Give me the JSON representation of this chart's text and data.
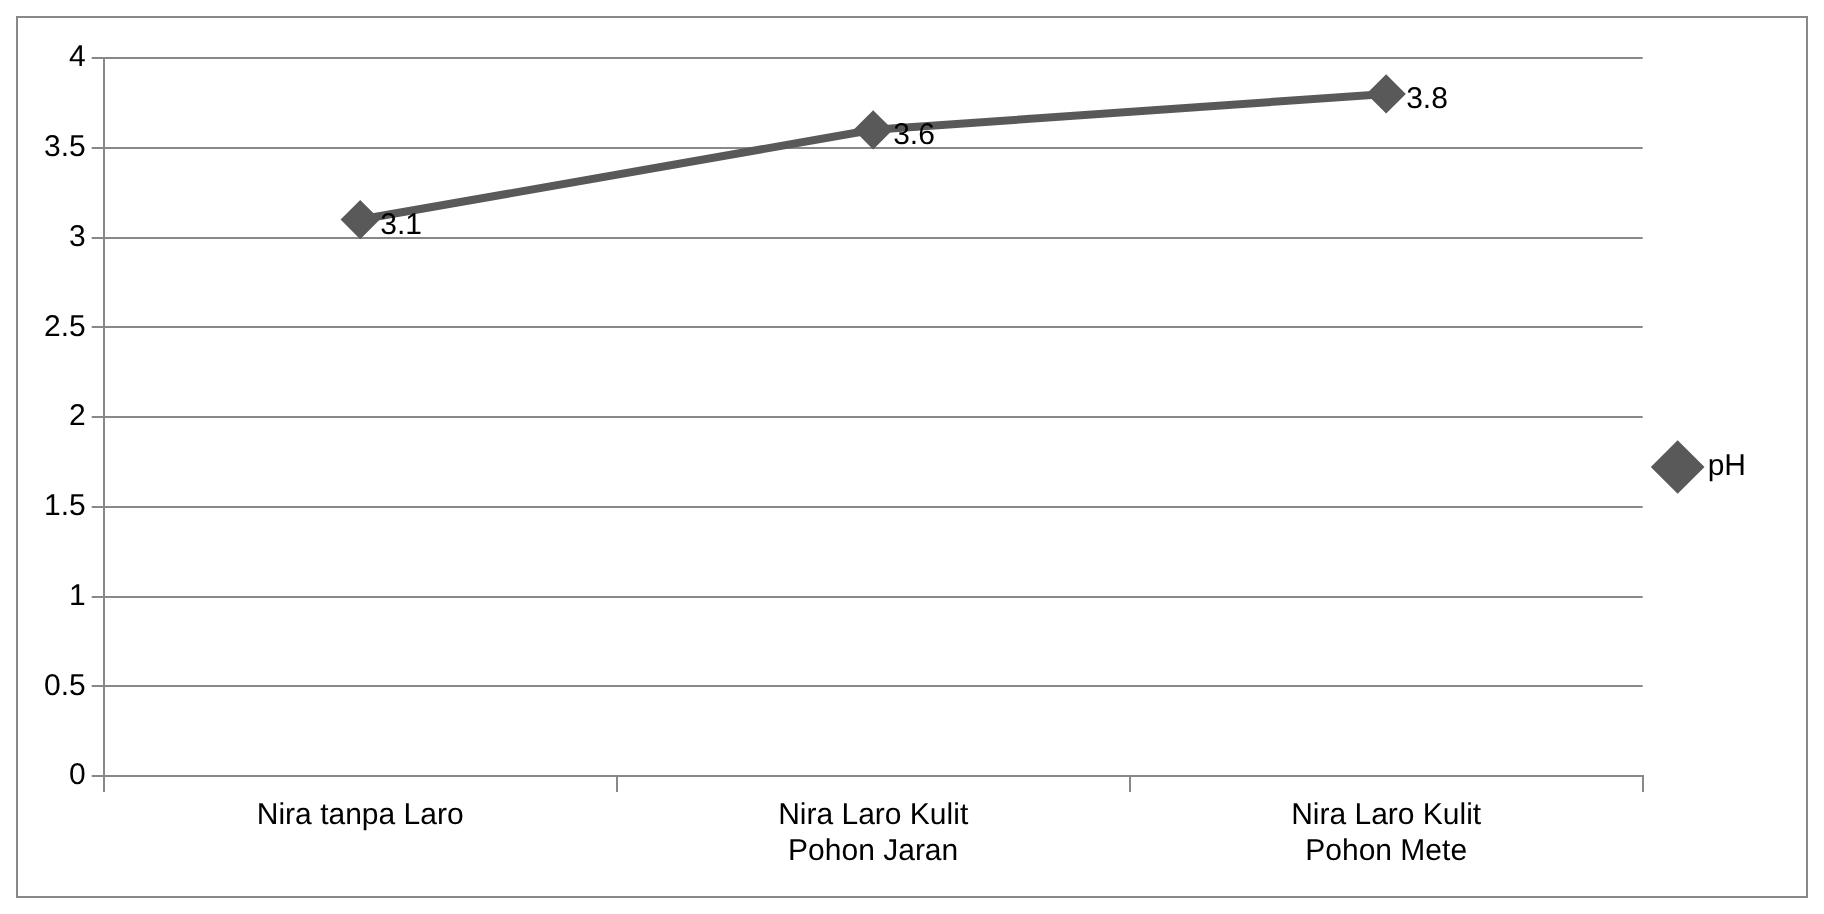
{
  "chart_data": {
    "type": "line",
    "categories": [
      "Nira tanpa Laro",
      "Nira Laro Kulit Pohon Jaran",
      "Nira Laro Kulit Pohon Mete"
    ],
    "series": [
      {
        "name": "pH",
        "color": "#595959",
        "values": [
          3.1,
          3.6,
          3.8
        ]
      }
    ],
    "ylim": [
      0,
      4
    ],
    "yticks": [
      0,
      0.5,
      1,
      1.5,
      2,
      2.5,
      3,
      3.5,
      4
    ],
    "grid": "y",
    "legend": "right",
    "marker": "diamond",
    "line_style": "solid",
    "data_labels": true
  }
}
